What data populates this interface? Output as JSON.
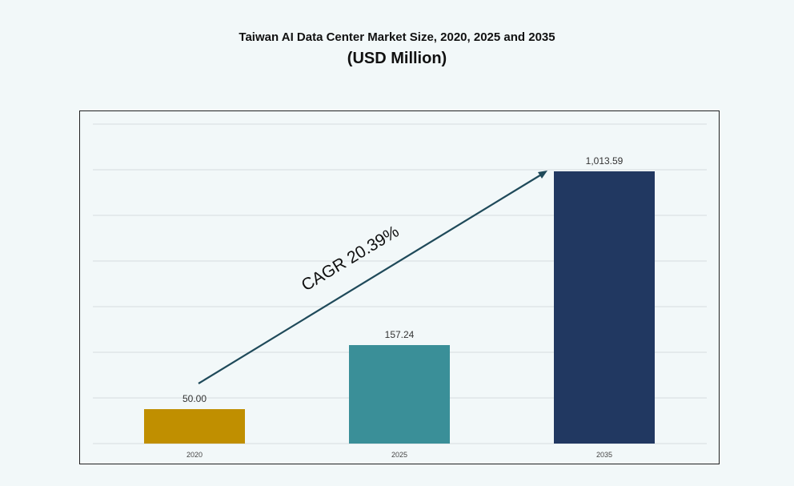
{
  "chart_data": {
    "type": "bar",
    "title": "Taiwan AI Data Center Market Size, 2020, 2025 and 2035",
    "subtitle": "(USD Million)",
    "categories": [
      "2020",
      "2025",
      "2035"
    ],
    "values": [
      50.0,
      157.24,
      1013.59
    ],
    "data_labels": [
      "50.00",
      "157.24",
      "1,013.59"
    ],
    "colors": [
      "#c08f00",
      "#3a8f98",
      "#213861"
    ],
    "annotation": "CAGR 20.39%",
    "annotation_color": "#1f4a5a",
    "grid": true,
    "xlabel": "",
    "ylabel": ""
  }
}
